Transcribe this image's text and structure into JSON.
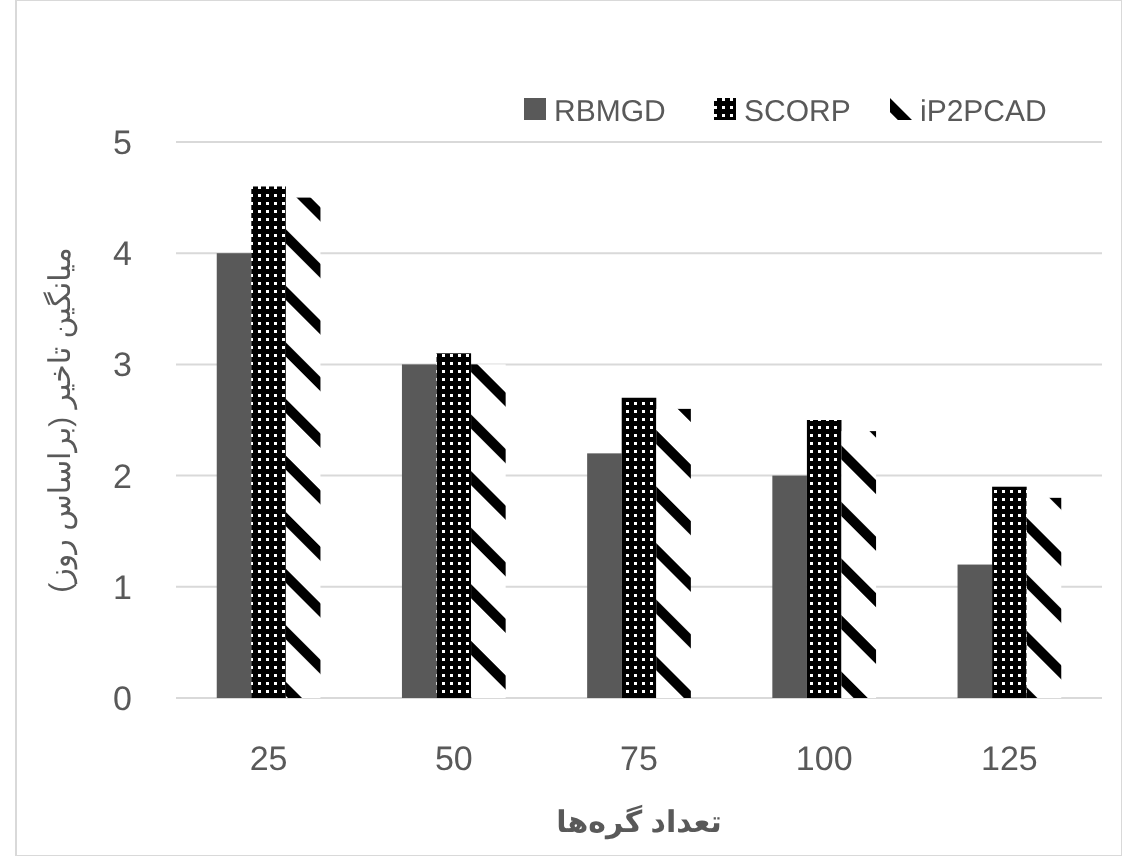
{
  "chart_data": {
    "type": "bar",
    "xlabel": "تعداد گره‌ها",
    "ylabel": "میانگین تاخیر (براساس روز)",
    "categories": [
      "25",
      "50",
      "75",
      "100",
      "125"
    ],
    "series": [
      {
        "name": "RBMGD",
        "color": "#595959",
        "values": [
          4,
          3,
          2.2,
          2,
          1.2
        ]
      },
      {
        "name": "SCORP",
        "color": "#000000",
        "values": [
          4.6,
          3.1,
          2.7,
          2.5,
          1.9
        ]
      },
      {
        "name": "iP2PCAD",
        "color": "#000000",
        "values": [
          4.5,
          3,
          2.6,
          2.4,
          1.8
        ]
      }
    ],
    "ylim": [
      0,
      5
    ],
    "yticks": [
      0,
      1,
      2,
      3,
      4,
      5
    ],
    "grid": "y",
    "legend": "top right"
  }
}
